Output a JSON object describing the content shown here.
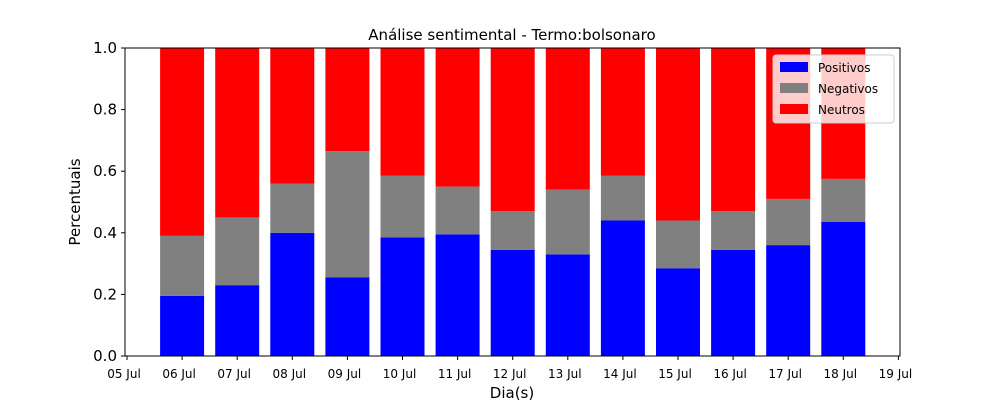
{
  "chart_data": {
    "type": "bar",
    "stacked": true,
    "title": "Análise sentimental - Termo:bolsonaro",
    "xlabel": "Dia(s)",
    "ylabel": "Percentuais",
    "ylim": [
      0,
      1.0
    ],
    "yticks": [
      "0.0",
      "0.2",
      "0.4",
      "0.6",
      "0.8",
      "1.0"
    ],
    "xticks": [
      "05 Jul",
      "06 Jul",
      "07 Jul",
      "08 Jul",
      "09 Jul",
      "10 Jul",
      "11 Jul",
      "12 Jul",
      "13 Jul",
      "14 Jul",
      "15 Jul",
      "16 Jul",
      "17 Jul",
      "18 Jul",
      "19 Jul"
    ],
    "categories": [
      "06 Jul",
      "07 Jul",
      "08 Jul",
      "09 Jul",
      "10 Jul",
      "11 Jul",
      "12 Jul",
      "13 Jul",
      "14 Jul",
      "15 Jul",
      "16 Jul",
      "17 Jul",
      "18 Jul"
    ],
    "legend_position": "top-right",
    "series": [
      {
        "name": "Positivos",
        "color": "#0000ff",
        "values": [
          0.195,
          0.23,
          0.4,
          0.255,
          0.385,
          0.395,
          0.345,
          0.33,
          0.44,
          0.285,
          0.345,
          0.36,
          0.435
        ]
      },
      {
        "name": "Negativos",
        "color": "#808080",
        "values": [
          0.195,
          0.22,
          0.16,
          0.41,
          0.2,
          0.155,
          0.125,
          0.21,
          0.145,
          0.155,
          0.125,
          0.15,
          0.14
        ]
      },
      {
        "name": "Neutros",
        "color": "#ff0000",
        "values": [
          0.61,
          0.55,
          0.44,
          0.335,
          0.415,
          0.45,
          0.53,
          0.46,
          0.415,
          0.56,
          0.53,
          0.49,
          0.425
        ]
      }
    ]
  }
}
